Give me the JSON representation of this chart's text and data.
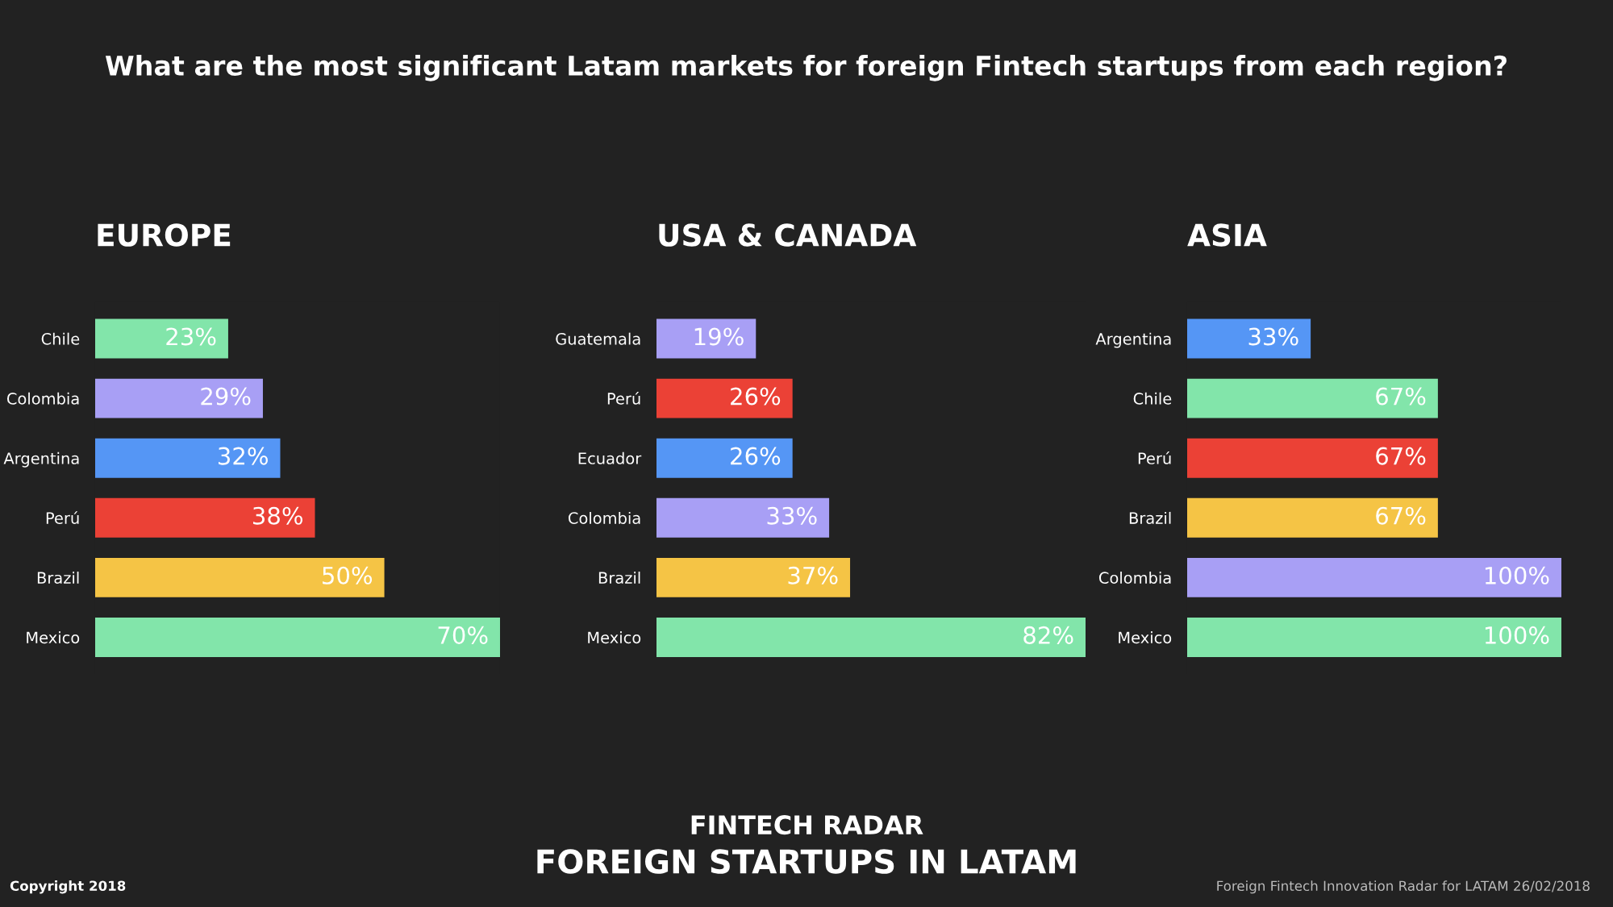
{
  "chart_data": [
    {
      "type": "bar",
      "orientation": "horizontal",
      "title": "EUROPE",
      "categories": [
        "Chile",
        "Colombia",
        "Argentina",
        "Perú",
        "Brazil",
        "Mexico"
      ],
      "values": [
        23,
        29,
        32,
        38,
        50,
        70
      ],
      "colors": [
        "#82e5aa",
        "#a89ff5",
        "#5596f5",
        "#eb4136",
        "#f5c445",
        "#82e5aa"
      ],
      "data_labels": true,
      "value_labels": [
        "23%",
        "29%",
        "32%",
        "38%",
        "50%",
        "70%"
      ],
      "tick_labels": "y",
      "grid": false,
      "legend": false
    },
    {
      "type": "bar",
      "orientation": "horizontal",
      "title": "USA & CANADA",
      "categories": [
        "Guatemala",
        "Perú",
        "Ecuador",
        "Colombia",
        "Brazil",
        "Mexico"
      ],
      "values": [
        19,
        26,
        26,
        33,
        37,
        82
      ],
      "colors": [
        "#a89ff5",
        "#eb4136",
        "#5596f5",
        "#a89ff5",
        "#f5c445",
        "#82e5aa"
      ],
      "data_labels": true,
      "value_labels": [
        "19%",
        "26%",
        "26%",
        "33%",
        "37%",
        "82%"
      ],
      "tick_labels": "y",
      "grid": false,
      "legend": false
    },
    {
      "type": "bar",
      "orientation": "horizontal",
      "title": "ASIA",
      "categories": [
        "Argentina",
        "Chile",
        "Perú",
        "Brazil",
        "Colombia",
        "Mexico"
      ],
      "values": [
        33,
        67,
        67,
        67,
        100,
        100
      ],
      "colors": [
        "#5596f5",
        "#82e5aa",
        "#eb4136",
        "#f5c445",
        "#a89ff5",
        "#82e5aa"
      ],
      "data_labels": true,
      "value_labels": [
        "33%",
        "67%",
        "67%",
        "67%",
        "100%",
        "100%"
      ],
      "tick_labels": "y",
      "grid": false,
      "legend": false
    },
    {
      "type": "other",
      "title": "What are the most significant Latam markets for foreign Fintech startups from each region?",
      "annotations": [
        "FINTECH RADAR",
        "FOREIGN STARTUPS IN LATAM",
        "Copyright 2018",
        "Foreign Fintech Innovation Radar for LATAM 26/02/2018"
      ]
    }
  ]
}
